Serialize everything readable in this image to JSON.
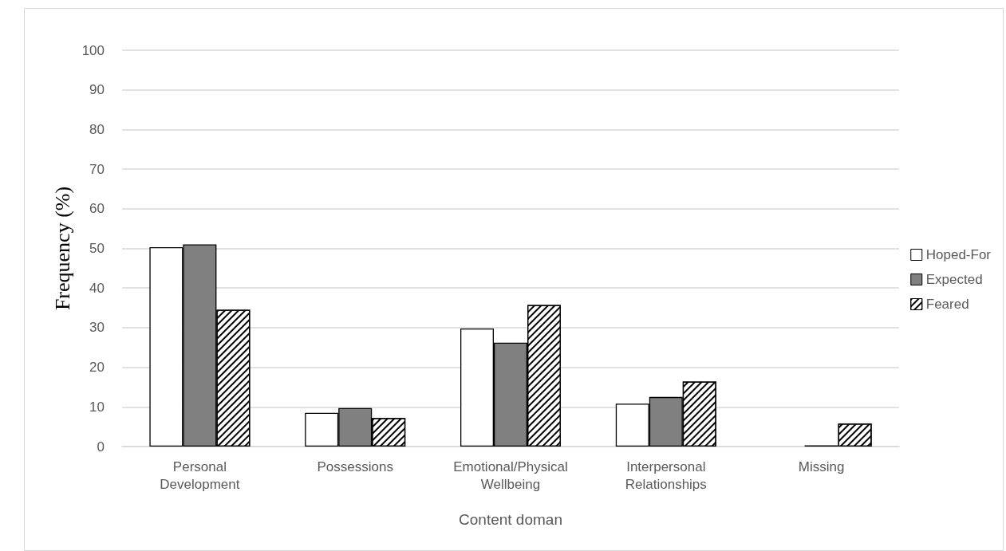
{
  "chart_data": {
    "type": "bar",
    "xlabel": "Content doman",
    "ylabel": "Frequency (%)",
    "categories": [
      "Personal\nDevelopment",
      "Possessions",
      "Emotional/Physical\nWellbeing",
      "Interpersonal\nRelationships",
      "Missing"
    ],
    "series": [
      {
        "name": "Hoped-For",
        "color": "#ffffff",
        "values": [
          50.3,
          8.5,
          29.8,
          10.8,
          null
        ]
      },
      {
        "name": "Expected",
        "color": "#808080",
        "values": [
          51.0,
          9.7,
          26.2,
          12.5,
          0.3
        ]
      },
      {
        "name": "Feared",
        "color": "#000000",
        "values": [
          34.5,
          7.2,
          35.7,
          16.4,
          5.8
        ]
      }
    ],
    "ylim": [
      0,
      100
    ],
    "yticks": [
      0,
      10,
      20,
      30,
      40,
      50,
      60,
      70,
      80,
      90,
      100
    ],
    "grid": "y",
    "legend": "right"
  }
}
